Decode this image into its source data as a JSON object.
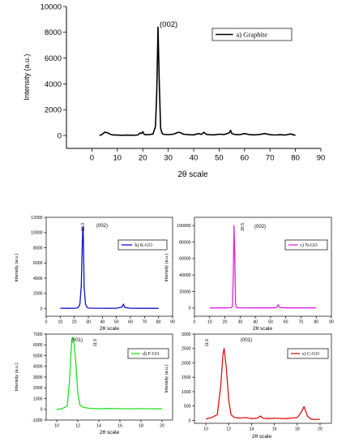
{
  "chart_data": [
    {
      "type": "line",
      "xlabel": "2θ scale",
      "ylabel": "Intensity (a.u.)",
      "xlim": [
        -10,
        90
      ],
      "ylim": [
        -1000,
        10000
      ],
      "xticks": [
        0,
        10,
        20,
        30,
        40,
        50,
        60,
        70,
        80,
        90
      ],
      "yticks": [
        0,
        2000,
        4000,
        6000,
        8000,
        10000
      ],
      "legend": "top-right",
      "series": [
        {
          "name": "a) Graphite",
          "color": "#000000",
          "x": [
            3,
            4,
            5,
            6,
            7,
            8,
            10,
            12,
            14,
            16,
            18,
            19,
            19.5,
            20,
            20.5,
            21,
            22,
            23,
            24,
            25,
            25.5,
            26,
            26.5,
            27,
            27.5,
            28,
            29,
            30,
            32,
            34,
            35,
            36,
            38,
            40,
            42,
            43,
            44,
            45,
            46,
            48,
            50,
            52,
            54,
            54.5,
            55,
            56,
            58,
            60,
            62,
            64,
            66,
            68,
            70,
            72,
            74,
            76,
            78,
            80
          ],
          "y": [
            0,
            80,
            250,
            220,
            120,
            50,
            30,
            20,
            30,
            20,
            40,
            200,
            150,
            300,
            100,
            60,
            60,
            80,
            120,
            700,
            3500,
            8400,
            4000,
            600,
            200,
            100,
            80,
            70,
            100,
            250,
            200,
            100,
            60,
            50,
            150,
            80,
            250,
            90,
            60,
            50,
            100,
            80,
            200,
            400,
            150,
            80,
            60,
            150,
            60,
            50,
            80,
            150,
            60,
            40,
            60,
            30,
            120,
            20
          ]
        }
      ],
      "annotations": [
        "(002)"
      ]
    },
    {
      "type": "line",
      "xlabel": "2θ scale",
      "ylabel": "Intensity (a.u.)",
      "xlim": [
        0,
        90
      ],
      "ylim": [
        -1000,
        12000
      ],
      "xticks": [
        0,
        10,
        20,
        30,
        40,
        50,
        60,
        70,
        80,
        90
      ],
      "yticks": [
        0,
        2000,
        4000,
        6000,
        8000,
        10000,
        12000
      ],
      "legend": "top-right",
      "series": [
        {
          "name": "b) K-GO",
          "color": "#1010c8",
          "x": [
            10,
            15,
            20,
            22,
            23,
            24,
            25,
            25.5,
            26,
            26.3,
            26.6,
            27,
            28,
            29,
            30,
            35,
            40,
            45,
            50,
            54,
            55,
            56,
            60,
            65,
            70,
            75,
            80
          ],
          "y": [
            50,
            40,
            60,
            80,
            200,
            600,
            3000,
            7000,
            10500,
            10800,
            8000,
            3000,
            600,
            200,
            80,
            60,
            50,
            40,
            50,
            200,
            600,
            150,
            50,
            40,
            50,
            40,
            30
          ]
        }
      ],
      "annotations": [
        "26.3",
        "(002)"
      ]
    },
    {
      "type": "line",
      "xlabel": "2θ scale",
      "ylabel": "Intensity (a.u.)",
      "xlim": [
        0,
        90
      ],
      "ylim": [
        -10000,
        110000
      ],
      "xticks": [
        0,
        10,
        20,
        30,
        40,
        50,
        60,
        70,
        80,
        90
      ],
      "yticks": [
        0,
        20000,
        40000,
        60000,
        80000,
        100000
      ],
      "legend": "top-right",
      "series": [
        {
          "name": "c) N-GO",
          "color": "#e020e0",
          "x": [
            10,
            15,
            20,
            24,
            25,
            25.5,
            26,
            26.5,
            27,
            27.5,
            28,
            30,
            35,
            40,
            45,
            50,
            54,
            55,
            56,
            60,
            70,
            80
          ],
          "y": [
            100,
            100,
            150,
            300,
            2000,
            40000,
            100000,
            60000,
            5000,
            800,
            300,
            200,
            150,
            100,
            100,
            150,
            500,
            4000,
            600,
            150,
            100,
            100
          ]
        }
      ],
      "annotations": [
        "26.5",
        "(002)"
      ]
    },
    {
      "type": "line",
      "xlabel": "2θ scale",
      "ylabel": "Intensity (a.u.)",
      "xlim": [
        9,
        21
      ],
      "ylim": [
        -1000,
        7000
      ],
      "xticks": [
        10,
        12,
        14,
        16,
        18,
        20
      ],
      "yticks": [
        -1000,
        0,
        1000,
        2000,
        3000,
        4000,
        5000,
        6000,
        7000
      ],
      "legend": "top-right",
      "series": [
        {
          "name": "d) F-GO",
          "color": "#20e020",
          "x": [
            10,
            10.5,
            11,
            11.2,
            11.4,
            11.5,
            11.6,
            11.8,
            12,
            12.2,
            12.5,
            13,
            14,
            15,
            16,
            17,
            18,
            19,
            20
          ],
          "y": [
            0,
            50,
            300,
            2500,
            6000,
            6700,
            6500,
            4500,
            1500,
            400,
            200,
            100,
            50,
            80,
            60,
            50,
            60,
            50,
            40
          ]
        }
      ],
      "annotations": [
        "11.5",
        "(001)"
      ]
    },
    {
      "type": "line",
      "xlabel": "2θ scale",
      "ylabel": "Intensity (a.u.)",
      "xlim": [
        9,
        21
      ],
      "ylim": [
        -100,
        3000
      ],
      "xticks": [
        10,
        12,
        14,
        16,
        18,
        20
      ],
      "yticks": [
        0,
        500,
        1000,
        1500,
        2000,
        2500,
        3000
      ],
      "legend": "top-right",
      "series": [
        {
          "name": "e) C-GO",
          "color": "#e01010",
          "x": [
            10,
            10.5,
            11,
            11.3,
            11.5,
            11.6,
            11.8,
            12,
            12.2,
            12.5,
            13,
            13.5,
            14,
            14.5,
            14.8,
            15,
            15.5,
            16,
            17,
            18,
            18.3,
            18.6,
            18.9,
            19.2,
            19.5,
            20
          ],
          "y": [
            50,
            100,
            200,
            1200,
            2300,
            2500,
            1800,
            700,
            200,
            100,
            80,
            100,
            60,
            80,
            150,
            80,
            60,
            80,
            60,
            100,
            250,
            480,
            150,
            50,
            30,
            40
          ]
        }
      ],
      "annotations": [
        "11.6",
        "(001)"
      ]
    }
  ]
}
